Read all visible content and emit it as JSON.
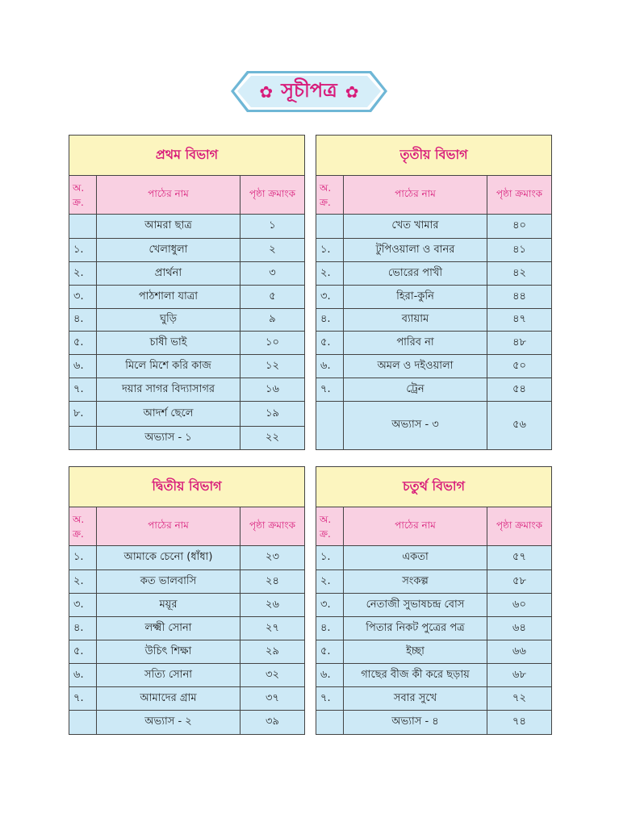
{
  "page_title": "সূচীপত্র",
  "title_icon": "flower-icon",
  "colors": {
    "accent": "#d81b7a",
    "section_bg": "#fcf5bf",
    "header_bg": "#f9d0e2",
    "row_bg": "#cde9f6"
  },
  "sections": [
    {
      "heading": "প্রথম বিভাগ",
      "col_no": "অ. ক্র.",
      "col_lesson": "পাঠের নাম",
      "col_page": "পৃষ্ঠা ক্রমাংক",
      "rows": [
        {
          "no": "",
          "lesson": "আমরা ছাত্র",
          "page": "১"
        },
        {
          "no": "১.",
          "lesson": "খেলাধুলা",
          "page": "২"
        },
        {
          "no": "২.",
          "lesson": "প্রার্থনা",
          "page": "৩"
        },
        {
          "no": "৩.",
          "lesson": "পাঠশালা যাত্রা",
          "page": "৫"
        },
        {
          "no": "৪.",
          "lesson": "ঘুড়ি",
          "page": "৯"
        },
        {
          "no": "৫.",
          "lesson": "চাষী ভাই",
          "page": "১০"
        },
        {
          "no": "৬.",
          "lesson": "মিলে মিশে করি কাজ",
          "page": "১২"
        },
        {
          "no": "৭.",
          "lesson": "দয়ার সাগর বিদ্যাসাগর",
          "page": "১৬"
        },
        {
          "no": "৮.",
          "lesson": "আদর্শ ছেলে",
          "page": "১৯"
        },
        {
          "no": "",
          "lesson": "অভ্যাস - ১",
          "page": "২২"
        }
      ]
    },
    {
      "heading": "তৃতীয় বিভাগ",
      "col_no": "অ. ক্র.",
      "col_lesson": "পাঠের নাম",
      "col_page": "পৃষ্ঠা ক্রমাংক",
      "rows": [
        {
          "no": "",
          "lesson": "খেত খামার",
          "page": "৪০"
        },
        {
          "no": "১.",
          "lesson": "টুপিওয়ালা ও বানর",
          "page": "৪১"
        },
        {
          "no": "২.",
          "lesson": "ভোরের পাখী",
          "page": "৪২"
        },
        {
          "no": "৩.",
          "lesson": "হিরা-কুনি",
          "page": "৪৪"
        },
        {
          "no": "৪.",
          "lesson": "ব্যায়াম",
          "page": "৪৭"
        },
        {
          "no": "৫.",
          "lesson": "পারিব না",
          "page": "৪৮"
        },
        {
          "no": "৬.",
          "lesson": "অমল ও দইওয়ালা",
          "page": "৫০"
        },
        {
          "no": "৭.",
          "lesson": "ট্রেন",
          "page": "৫৪"
        },
        {
          "no": "",
          "lesson": "অভ্যাস - ৩",
          "page": "৫৬"
        }
      ]
    },
    {
      "heading": "দ্বিতীয় বিভাগ",
      "col_no": "অ. ক্র.",
      "col_lesson": "পাঠের নাম",
      "col_page": "পৃষ্ঠা ক্রমাংক",
      "rows": [
        {
          "no": "১.",
          "lesson": "আমাকে চেনো (ধাঁধা)",
          "page": "২৩"
        },
        {
          "no": "২.",
          "lesson": "কত ভালবাসি",
          "page": "২৪"
        },
        {
          "no": "৩.",
          "lesson": "ময়ূর",
          "page": "২৬"
        },
        {
          "no": "৪.",
          "lesson": "লক্ষ্মী সোনা",
          "page": "২৭"
        },
        {
          "no": "৫.",
          "lesson": "উচিৎ শিক্ষা",
          "page": "২৯"
        },
        {
          "no": "৬.",
          "lesson": "সত্যি সোনা",
          "page": "৩২"
        },
        {
          "no": "৭.",
          "lesson": "আমাদের গ্রাম",
          "page": "৩৭"
        },
        {
          "no": "",
          "lesson": "অভ্যাস - ২",
          "page": "৩৯"
        }
      ]
    },
    {
      "heading": "চতুর্থ বিভাগ",
      "col_no": "অ. ক্র.",
      "col_lesson": "পাঠের নাম",
      "col_page": "পৃষ্ঠা ক্রমাংক",
      "rows": [
        {
          "no": "১.",
          "lesson": "একতা",
          "page": "৫৭"
        },
        {
          "no": "২.",
          "lesson": "সংকল্প",
          "page": "৫৮"
        },
        {
          "no": "৩.",
          "lesson": "নেতাজী সুভাষচন্দ্র বোস",
          "page": "৬০"
        },
        {
          "no": "৪.",
          "lesson": "পিতার নিকট পুত্রের পত্র",
          "page": "৬৪"
        },
        {
          "no": "৫.",
          "lesson": "ইচ্ছা",
          "page": "৬৬"
        },
        {
          "no": "৬.",
          "lesson": "গাছের বীজ কী করে ছড়ায়",
          "page": "৬৮"
        },
        {
          "no": "৭.",
          "lesson": "সবার সুখে",
          "page": "৭২"
        },
        {
          "no": "",
          "lesson": "অভ্যাস - ৪",
          "page": "৭৪"
        }
      ]
    }
  ]
}
